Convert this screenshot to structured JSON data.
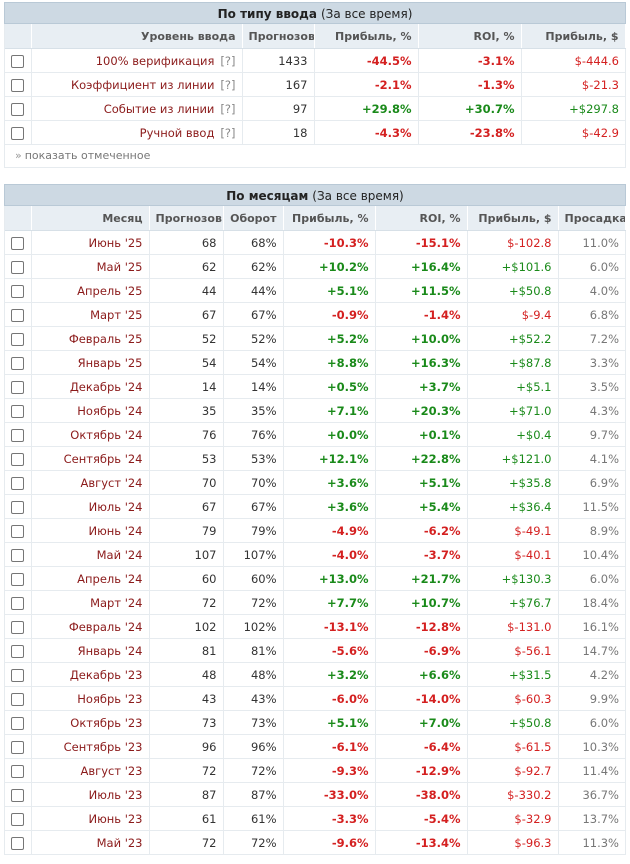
{
  "input_panel": {
    "title": "По типу ввода",
    "period": "(За все время)",
    "columns": [
      "Уровень ввода",
      "Прогнозов",
      "Прибыль, %",
      "ROI, %",
      "Прибыль, $"
    ],
    "rows": [
      {
        "label": "100% верификация",
        "help": "[?]",
        "forecasts": "1433",
        "profit_pct": "-44.5%",
        "roi": "-3.1%",
        "profit_usd": "$-444.6"
      },
      {
        "label": "Коэффициент из линии",
        "help": "[?]",
        "forecasts": "167",
        "profit_pct": "-2.1%",
        "roi": "-1.3%",
        "profit_usd": "$-21.3"
      },
      {
        "label": "Событие из линии",
        "help": "[?]",
        "forecasts": "97",
        "profit_pct": "+29.8%",
        "roi": "+30.7%",
        "profit_usd": "+$297.8"
      },
      {
        "label": "Ручной ввод",
        "help": "[?]",
        "forecasts": "18",
        "profit_pct": "-4.3%",
        "roi": "-23.8%",
        "profit_usd": "$-42.9"
      }
    ],
    "show_selected": "показать отмеченное",
    "show_selected_arrow": "»"
  },
  "month_panel": {
    "title": "По месяцам",
    "period": "(За все время)",
    "columns": [
      "Месяц",
      "Прогнозов",
      "Оборот",
      "Прибыль, %",
      "ROI, %",
      "Прибыль, $",
      "Просадка"
    ],
    "rows": [
      {
        "month": "Июнь '25",
        "forecasts": "68",
        "turnover": "68%",
        "profit_pct": "-10.3%",
        "roi": "-15.1%",
        "profit_usd": "$-102.8",
        "drawdown": "11.0%"
      },
      {
        "month": "Май '25",
        "forecasts": "62",
        "turnover": "62%",
        "profit_pct": "+10.2%",
        "roi": "+16.4%",
        "profit_usd": "+$101.6",
        "drawdown": "6.0%"
      },
      {
        "month": "Апрель '25",
        "forecasts": "44",
        "turnover": "44%",
        "profit_pct": "+5.1%",
        "roi": "+11.5%",
        "profit_usd": "+$50.8",
        "drawdown": "4.0%"
      },
      {
        "month": "Март '25",
        "forecasts": "67",
        "turnover": "67%",
        "profit_pct": "-0.9%",
        "roi": "-1.4%",
        "profit_usd": "$-9.4",
        "drawdown": "6.8%"
      },
      {
        "month": "Февраль '25",
        "forecasts": "52",
        "turnover": "52%",
        "profit_pct": "+5.2%",
        "roi": "+10.0%",
        "profit_usd": "+$52.2",
        "drawdown": "7.2%"
      },
      {
        "month": "Январь '25",
        "forecasts": "54",
        "turnover": "54%",
        "profit_pct": "+8.8%",
        "roi": "+16.3%",
        "profit_usd": "+$87.8",
        "drawdown": "3.3%"
      },
      {
        "month": "Декабрь '24",
        "forecasts": "14",
        "turnover": "14%",
        "profit_pct": "+0.5%",
        "roi": "+3.7%",
        "profit_usd": "+$5.1",
        "drawdown": "3.5%"
      },
      {
        "month": "Ноябрь '24",
        "forecasts": "35",
        "turnover": "35%",
        "profit_pct": "+7.1%",
        "roi": "+20.3%",
        "profit_usd": "+$71.0",
        "drawdown": "4.3%"
      },
      {
        "month": "Октябрь '24",
        "forecasts": "76",
        "turnover": "76%",
        "profit_pct": "+0.0%",
        "roi": "+0.1%",
        "profit_usd": "+$0.4",
        "drawdown": "9.7%"
      },
      {
        "month": "Сентябрь '24",
        "forecasts": "53",
        "turnover": "53%",
        "profit_pct": "+12.1%",
        "roi": "+22.8%",
        "profit_usd": "+$121.0",
        "drawdown": "4.1%"
      },
      {
        "month": "Август '24",
        "forecasts": "70",
        "turnover": "70%",
        "profit_pct": "+3.6%",
        "roi": "+5.1%",
        "profit_usd": "+$35.8",
        "drawdown": "6.9%"
      },
      {
        "month": "Июль '24",
        "forecasts": "67",
        "turnover": "67%",
        "profit_pct": "+3.6%",
        "roi": "+5.4%",
        "profit_usd": "+$36.4",
        "drawdown": "11.5%"
      },
      {
        "month": "Июнь '24",
        "forecasts": "79",
        "turnover": "79%",
        "profit_pct": "-4.9%",
        "roi": "-6.2%",
        "profit_usd": "$-49.1",
        "drawdown": "8.9%"
      },
      {
        "month": "Май '24",
        "forecasts": "107",
        "turnover": "107%",
        "profit_pct": "-4.0%",
        "roi": "-3.7%",
        "profit_usd": "$-40.1",
        "drawdown": "10.4%"
      },
      {
        "month": "Апрель '24",
        "forecasts": "60",
        "turnover": "60%",
        "profit_pct": "+13.0%",
        "roi": "+21.7%",
        "profit_usd": "+$130.3",
        "drawdown": "6.0%"
      },
      {
        "month": "Март '24",
        "forecasts": "72",
        "turnover": "72%",
        "profit_pct": "+7.7%",
        "roi": "+10.7%",
        "profit_usd": "+$76.7",
        "drawdown": "18.4%"
      },
      {
        "month": "Февраль '24",
        "forecasts": "102",
        "turnover": "102%",
        "profit_pct": "-13.1%",
        "roi": "-12.8%",
        "profit_usd": "$-131.0",
        "drawdown": "16.1%"
      },
      {
        "month": "Январь '24",
        "forecasts": "81",
        "turnover": "81%",
        "profit_pct": "-5.6%",
        "roi": "-6.9%",
        "profit_usd": "$-56.1",
        "drawdown": "14.7%"
      },
      {
        "month": "Декабрь '23",
        "forecasts": "48",
        "turnover": "48%",
        "profit_pct": "+3.2%",
        "roi": "+6.6%",
        "profit_usd": "+$31.5",
        "drawdown": "4.2%"
      },
      {
        "month": "Ноябрь '23",
        "forecasts": "43",
        "turnover": "43%",
        "profit_pct": "-6.0%",
        "roi": "-14.0%",
        "profit_usd": "$-60.3",
        "drawdown": "9.9%"
      },
      {
        "month": "Октябрь '23",
        "forecasts": "73",
        "turnover": "73%",
        "profit_pct": "+5.1%",
        "roi": "+7.0%",
        "profit_usd": "+$50.8",
        "drawdown": "6.0%"
      },
      {
        "month": "Сентябрь '23",
        "forecasts": "96",
        "turnover": "96%",
        "profit_pct": "-6.1%",
        "roi": "-6.4%",
        "profit_usd": "$-61.5",
        "drawdown": "10.3%"
      },
      {
        "month": "Август '23",
        "forecasts": "72",
        "turnover": "72%",
        "profit_pct": "-9.3%",
        "roi": "-12.9%",
        "profit_usd": "$-92.7",
        "drawdown": "11.4%"
      },
      {
        "month": "Июль '23",
        "forecasts": "87",
        "turnover": "87%",
        "profit_pct": "-33.0%",
        "roi": "-38.0%",
        "profit_usd": "$-330.2",
        "drawdown": "36.7%"
      },
      {
        "month": "Июнь '23",
        "forecasts": "61",
        "turnover": "61%",
        "profit_pct": "-3.3%",
        "roi": "-5.4%",
        "profit_usd": "$-32.9",
        "drawdown": "13.7%"
      },
      {
        "month": "Май '23",
        "forecasts": "72",
        "turnover": "72%",
        "profit_pct": "-9.6%",
        "roi": "-13.4%",
        "profit_usd": "$-96.3",
        "drawdown": "11.3%"
      }
    ]
  },
  "colors": {
    "positive": "#1a8a1a",
    "negative": "#d42020",
    "label": "#8b1a1a",
    "header_bg": "#cdd9e3"
  }
}
